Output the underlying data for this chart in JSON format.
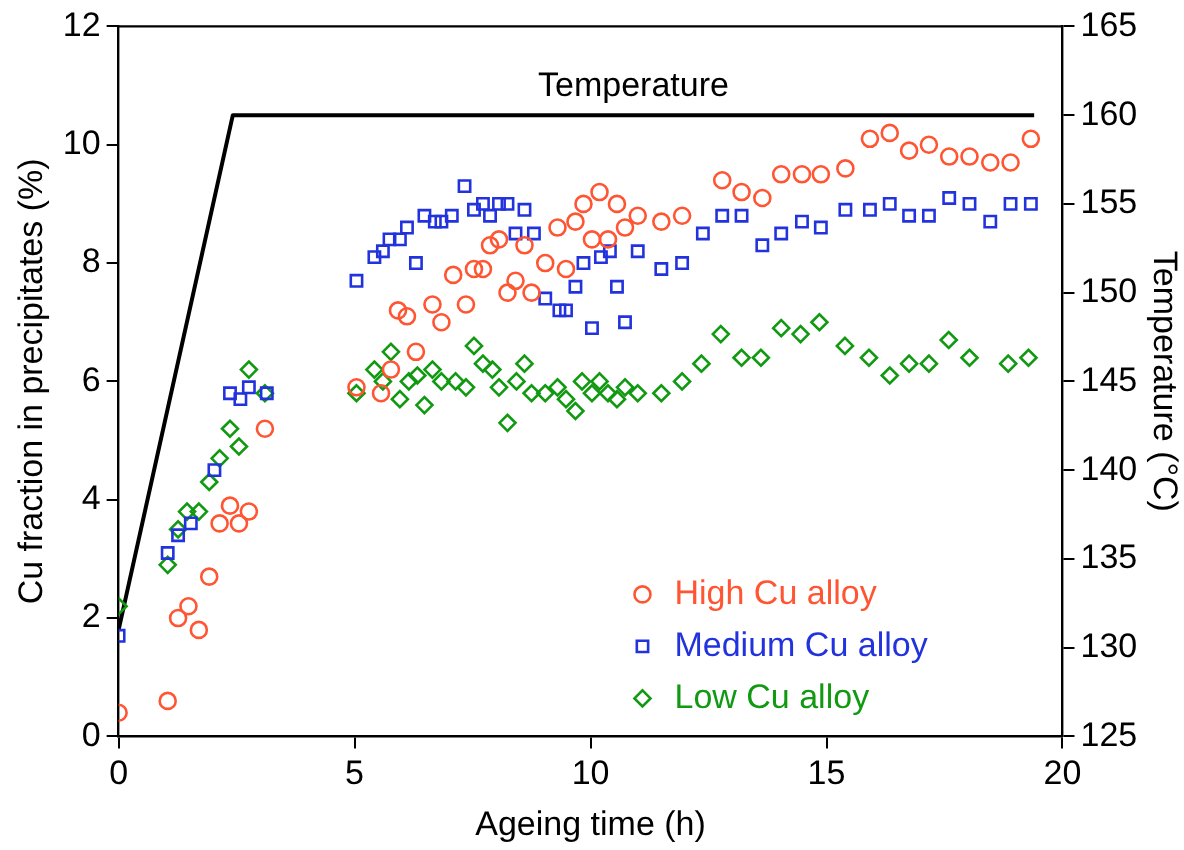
{
  "chart_data": {
    "type": "scatter",
    "xlabel": "Ageing time (h)",
    "ylabel": "Cu fraction in precipitates (%)",
    "y2label": "Temperature (°C)",
    "xlim": [
      0,
      20
    ],
    "xticks": [
      0,
      5,
      10,
      15,
      20
    ],
    "ylim": [
      0,
      12
    ],
    "yticks": [
      0,
      2,
      4,
      6,
      8,
      10,
      12
    ],
    "y2lim": [
      125,
      165
    ],
    "y2ticks": [
      125,
      130,
      135,
      140,
      145,
      150,
      155,
      160,
      165
    ],
    "grid": false,
    "legend": "bottom right",
    "series": [
      {
        "name": "High Cu alloy",
        "color": "#ff5533",
        "marker": "circle",
        "x": [
          0,
          1.04,
          1.26,
          1.48,
          1.7,
          1.92,
          2.14,
          2.36,
          2.55,
          2.76,
          3.1,
          5.04,
          5.56,
          5.77,
          6.3,
          5.92,
          6.11,
          6.65,
          6.84,
          7.09,
          7.36,
          7.53,
          7.72,
          7.87,
          8.06,
          8.24,
          8.41,
          8.6,
          8.75,
          9.04,
          9.3,
          9.48,
          9.68,
          9.85,
          10.03,
          10.19,
          10.37,
          10.56,
          10.73,
          11.0,
          11.5,
          11.94,
          12.79,
          13.2,
          13.64,
          14.04,
          14.48,
          14.88,
          15.4,
          15.92,
          16.34,
          16.75,
          17.17,
          17.6,
          18.03,
          18.47,
          18.9,
          19.33
        ],
        "values": [
          0.4,
          0.6,
          2.0,
          2.2,
          1.8,
          2.7,
          3.6,
          3.9,
          3.6,
          3.8,
          5.2,
          5.9,
          5.8,
          6.2,
          6.5,
          7.2,
          7.1,
          7.3,
          7.0,
          7.8,
          7.3,
          7.9,
          7.9,
          8.3,
          8.4,
          7.5,
          7.7,
          8.3,
          7.5,
          8.0,
          8.6,
          7.9,
          8.7,
          9.0,
          8.4,
          9.2,
          8.4,
          9.0,
          8.6,
          8.8,
          8.7,
          8.8,
          9.4,
          9.2,
          9.1,
          9.5,
          9.5,
          9.5,
          9.6,
          10.1,
          10.2,
          9.9,
          10.0,
          9.8,
          9.8,
          9.7,
          9.7,
          10.1
        ]
      },
      {
        "name": "Medium Cu alloy",
        "color": "#2233dd",
        "marker": "square",
        "x": [
          0,
          1.04,
          1.26,
          1.53,
          2.03,
          2.36,
          2.58,
          2.76,
          3.14,
          5.04,
          5.42,
          5.6,
          5.74,
          5.96,
          6.11,
          6.3,
          6.48,
          6.7,
          6.84,
          7.06,
          7.33,
          7.53,
          7.72,
          7.87,
          8.06,
          8.24,
          8.41,
          8.6,
          8.8,
          9.04,
          9.34,
          9.48,
          9.68,
          9.85,
          10.03,
          10.22,
          10.41,
          10.56,
          10.73,
          11.0,
          11.5,
          11.94,
          12.38,
          12.79,
          13.2,
          13.64,
          14.04,
          14.48,
          14.88,
          15.4,
          15.92,
          16.34,
          16.75,
          17.17,
          17.6,
          18.03,
          18.47,
          18.9,
          19.33
        ],
        "values": [
          1.7,
          3.1,
          3.4,
          3.6,
          4.5,
          5.8,
          5.7,
          5.9,
          5.8,
          7.7,
          8.1,
          8.2,
          8.4,
          8.4,
          8.6,
          8.0,
          8.8,
          8.7,
          8.7,
          8.8,
          9.3,
          8.9,
          9.0,
          8.8,
          9.0,
          9.0,
          8.5,
          8.9,
          8.5,
          7.4,
          7.2,
          7.2,
          7.6,
          8.0,
          6.9,
          8.1,
          8.2,
          7.6,
          7.0,
          8.2,
          7.9,
          8.0,
          8.5,
          8.8,
          8.8,
          8.3,
          8.5,
          8.7,
          8.6,
          8.9,
          8.9,
          9.0,
          8.8,
          8.8,
          9.1,
          9.0,
          8.7,
          9.0,
          9.0
        ]
      },
      {
        "name": "Low Cu alloy",
        "color": "#119911",
        "marker": "diamond",
        "x": [
          0,
          1.04,
          1.26,
          1.45,
          1.7,
          1.92,
          2.14,
          2.36,
          2.55,
          2.76,
          3.1,
          5.04,
          5.42,
          5.6,
          5.77,
          5.96,
          6.15,
          6.33,
          6.48,
          6.65,
          6.84,
          7.14,
          7.36,
          7.53,
          7.72,
          7.92,
          8.06,
          8.24,
          8.43,
          8.6,
          8.75,
          9.04,
          9.3,
          9.48,
          9.68,
          9.82,
          10.03,
          10.19,
          10.37,
          10.56,
          10.73,
          11.0,
          11.5,
          11.94,
          12.35,
          12.76,
          13.2,
          13.61,
          14.04,
          14.45,
          14.85,
          15.39,
          15.9,
          16.34,
          16.75,
          17.17,
          17.59,
          18.03,
          18.85,
          19.28
        ],
        "values": [
          2.2,
          2.9,
          3.5,
          3.8,
          3.8,
          4.3,
          4.7,
          5.2,
          4.9,
          6.2,
          5.8,
          5.8,
          6.2,
          6.0,
          6.5,
          5.7,
          6.0,
          6.1,
          5.6,
          6.2,
          6.0,
          6.0,
          5.9,
          6.6,
          6.3,
          6.2,
          5.9,
          5.3,
          6.0,
          6.3,
          5.8,
          5.8,
          5.9,
          5.7,
          5.5,
          6.0,
          5.8,
          6.0,
          5.8,
          5.7,
          5.9,
          5.8,
          5.8,
          6.0,
          6.3,
          6.8,
          6.4,
          6.4,
          6.9,
          6.8,
          7.0,
          6.6,
          6.4,
          6.1,
          6.3,
          6.3,
          6.7,
          6.4,
          6.3,
          6.4
        ]
      },
      {
        "name": "Temperature",
        "type": "line",
        "axis": "y2",
        "color": "#000000",
        "marker": "none",
        "line_style": "solid",
        "x": [
          0,
          2.42,
          19.4
        ],
        "values": [
          131,
          160,
          160
        ]
      }
    ]
  }
}
